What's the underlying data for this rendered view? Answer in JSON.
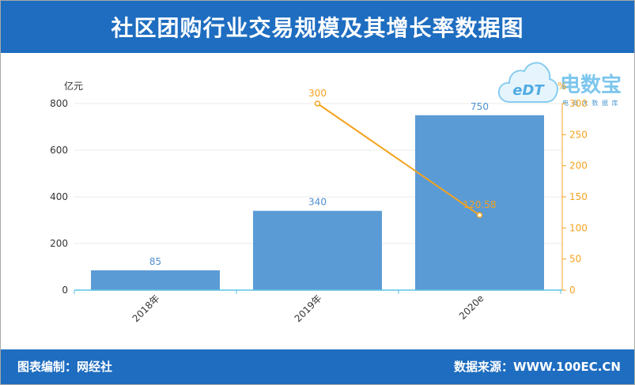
{
  "logo": {
    "brand": "电数宝",
    "badge": "eDT",
    "tagline": "电商大数据库"
  },
  "footer": {
    "left": "图表编制：网经社",
    "right": "数据来源：WWW.100EC.CN"
  },
  "colors": {
    "header_bg": "#1e6dc0",
    "bar": "#5b9bd5",
    "bar_label": "#4f8fd0",
    "line": "#f5a31f",
    "axis_x": "#5cc3e6",
    "grid": "#ebebeb",
    "text": "#333333",
    "logo": "#6fc0ec"
  },
  "chart_data": {
    "type": "bar",
    "title": "社区团购行业交易规模及其增长率数据图",
    "categories": [
      "2018年",
      "2019年",
      "2020e"
    ],
    "series": [
      {
        "mark": "bar",
        "y_axis": "left",
        "values": [
          85,
          340,
          750
        ]
      },
      {
        "mark": "line",
        "y_axis": "right",
        "values": [
          null,
          300,
          120.58
        ]
      }
    ],
    "y_left": {
      "label": "亿元",
      "range": [
        0,
        800
      ],
      "ticks": [
        0,
        200,
        400,
        600,
        800
      ]
    },
    "y_right": {
      "label": "%",
      "range": [
        0,
        300
      ],
      "ticks": [
        0,
        50,
        100,
        150,
        200,
        250,
        300
      ]
    },
    "grid": true,
    "legend": false
  }
}
